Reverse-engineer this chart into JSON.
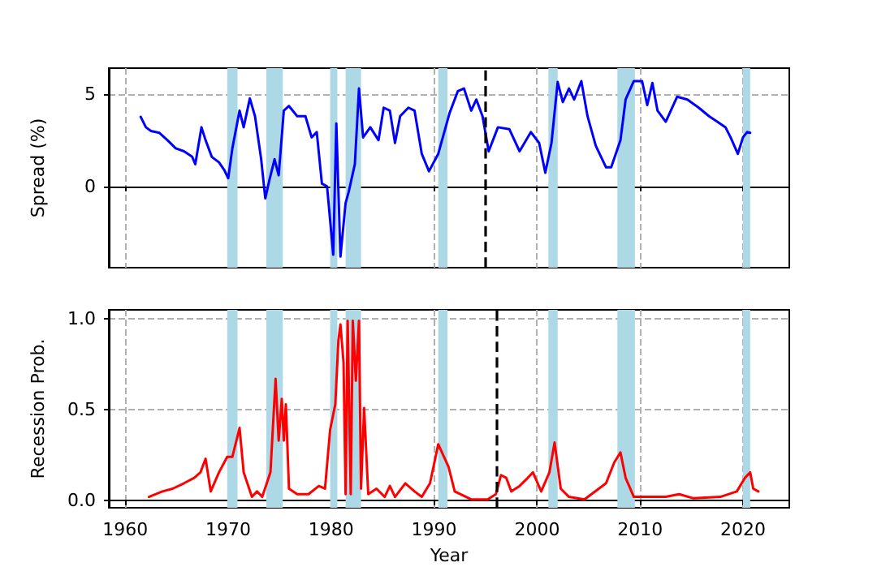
{
  "chart_data": [
    {
      "type": "line",
      "ylabel": "Spread (%)",
      "xlim": [
        1958.4,
        2024.5
      ],
      "xticks": [
        1960,
        1970,
        1980,
        1990,
        2000,
        2010,
        2020
      ],
      "ylim": [
        -4.4,
        6.4
      ],
      "yticks": [
        0,
        5
      ],
      "tick_labels": "y",
      "grid": true,
      "marker": "none",
      "line_style": "solid",
      "x": [
        1961.5,
        1962.0,
        1962.5,
        1963.3,
        1964.1,
        1964.9,
        1965.7,
        1966.5,
        1966.8,
        1967.4,
        1967.8,
        1968.4,
        1969.1,
        1969.6,
        1970.0,
        1970.4,
        1971.1,
        1971.5,
        1972.1,
        1972.6,
        1973.2,
        1973.6,
        1974.0,
        1974.5,
        1974.9,
        1975.4,
        1975.9,
        1976.7,
        1977.5,
        1978.1,
        1978.6,
        1979.1,
        1979.6,
        1980.2,
        1980.5,
        1980.9,
        1981.4,
        1981.7,
        1982.3,
        1982.7,
        1983.1,
        1983.8,
        1984.6,
        1985.1,
        1985.7,
        1986.2,
        1986.7,
        1987.5,
        1988.1,
        1988.8,
        1989.5,
        1990.4,
        1991.5,
        1992.3,
        1992.9,
        1993.6,
        1994.1,
        1994.7,
        1995.3,
        1996.2,
        1997.3,
        1998.3,
        1999.4,
        2000.2,
        2000.8,
        2001.4,
        2002.0,
        2002.5,
        2003.1,
        2003.6,
        2004.3,
        2004.9,
        2005.7,
        2006.7,
        2007.2,
        2008.1,
        2008.6,
        2009.4,
        2010.2,
        2010.7,
        2011.2,
        2011.7,
        2012.5,
        2013.6,
        2014.6,
        2015.7,
        2016.7,
        2017.5,
        2018.3,
        2018.8,
        2019.5,
        2020.0,
        2020.4,
        2020.7
      ],
      "series": [
        {
          "color": "#0000ff",
          "values": [
            3.76,
            3.2,
            3.0,
            2.9,
            2.5,
            2.06,
            1.9,
            1.6,
            1.2,
            3.2,
            2.5,
            1.6,
            1.3,
            0.9,
            0.44,
            2.06,
            4.1,
            3.2,
            4.76,
            3.8,
            1.47,
            -0.65,
            0.35,
            1.47,
            0.6,
            4.1,
            4.35,
            3.8,
            3.8,
            2.65,
            2.94,
            0.15,
            0,
            -3.7,
            3.4,
            -3.8,
            -0.9,
            -0.3,
            1.2,
            5.3,
            2.65,
            3.2,
            2.5,
            4.26,
            4.1,
            2.35,
            3.8,
            4.26,
            4.1,
            1.76,
            0.82,
            1.76,
            3.97,
            5.15,
            5.3,
            4.1,
            4.7,
            3.8,
            1.9,
            3.2,
            3.1,
            1.9,
            2.94,
            2.35,
            0.74,
            2.35,
            5.65,
            4.56,
            5.3,
            4.7,
            5.7,
            3.8,
            2.2,
            1.03,
            1.03,
            2.5,
            4.7,
            5.7,
            5.7,
            4.4,
            5.6,
            4.1,
            3.5,
            4.85,
            4.7,
            4.26,
            3.8,
            3.5,
            3.2,
            2.65,
            1.76,
            2.65,
            2.94,
            2.9
          ]
        }
      ],
      "bands": [
        {
          "axis": "x",
          "from": 1969.9,
          "to": 1970.9,
          "color": "#add8e6"
        },
        {
          "axis": "x",
          "from": 1973.7,
          "to": 1975.3,
          "color": "#add8e6"
        },
        {
          "axis": "x",
          "from": 1979.9,
          "to": 1980.6,
          "color": "#add8e6"
        },
        {
          "axis": "x",
          "from": 1981.4,
          "to": 1982.9,
          "color": "#add8e6"
        },
        {
          "axis": "x",
          "from": 1990.4,
          "to": 1991.3,
          "color": "#add8e6"
        },
        {
          "axis": "x",
          "from": 2001.1,
          "to": 2002.0,
          "color": "#add8e6"
        },
        {
          "axis": "x",
          "from": 2007.8,
          "to": 2009.5,
          "color": "#add8e6"
        },
        {
          "axis": "x",
          "from": 2020.0,
          "to": 2020.7,
          "color": "#add8e6"
        }
      ],
      "ref_lines": [
        {
          "axis": "x",
          "value": 1995.0,
          "color": "#000000",
          "line_style": "dashed"
        }
      ]
    },
    {
      "type": "line",
      "xlabel": "Year",
      "ylabel": "Recession Prob.",
      "xlim": [
        1958.4,
        2024.5
      ],
      "xticks": [
        1960,
        1970,
        1980,
        1990,
        2000,
        2010,
        2020
      ],
      "ylim": [
        -0.04,
        1.05
      ],
      "yticks": [
        {
          "value": 0,
          "label": "0.0"
        },
        {
          "value": 0.5,
          "label": "0.5"
        },
        {
          "value": 1,
          "label": "1.0"
        }
      ],
      "grid": true,
      "marker": "none",
      "line_style": "solid",
      "x": [
        1962.3,
        1963.6,
        1964.6,
        1965.7,
        1966.7,
        1967.3,
        1967.8,
        1968.3,
        1969.1,
        1969.9,
        1970.4,
        1971.1,
        1971.5,
        1972.3,
        1972.8,
        1973.3,
        1974.1,
        1974.6,
        1974.9,
        1975.2,
        1975.4,
        1975.6,
        1975.9,
        1976.7,
        1977.8,
        1978.8,
        1979.4,
        1979.9,
        1980.4,
        1980.7,
        1980.9,
        1981.2,
        1981.4,
        1981.6,
        1981.9,
        1982.1,
        1982.4,
        1982.7,
        1982.9,
        1983.2,
        1983.6,
        1984.4,
        1985.2,
        1985.7,
        1986.2,
        1987.2,
        1988.1,
        1988.8,
        1989.6,
        1990.4,
        1991.4,
        1992.0,
        1993.6,
        1995.2,
        1996.0,
        1996.5,
        1997.0,
        1997.5,
        1998.3,
        1999.1,
        1999.6,
        2000.4,
        2001.2,
        2001.7,
        2002.3,
        2003.1,
        2004.6,
        2006.7,
        2007.5,
        2008.1,
        2008.6,
        2009.4,
        2012.5,
        2013.8,
        2015.2,
        2017.8,
        2019.4,
        2020.2,
        2020.7,
        2021.0,
        2021.5
      ],
      "series": [
        {
          "color": "#ff0000",
          "values": [
            0.02,
            0.05,
            0.065,
            0.095,
            0.125,
            0.155,
            0.23,
            0.05,
            0.155,
            0.24,
            0.24,
            0.4,
            0.155,
            0.02,
            0.05,
            0.02,
            0.155,
            0.67,
            0.33,
            0.56,
            0.33,
            0.53,
            0.065,
            0.035,
            0.035,
            0.08,
            0.065,
            0.39,
            0.53,
            0.88,
            0.97,
            0.76,
            0.035,
            0.99,
            0.035,
            0.99,
            0.66,
            0.99,
            0.065,
            0.51,
            0.035,
            0.065,
            0.02,
            0.08,
            0.02,
            0.095,
            0.05,
            0.02,
            0.095,
            0.31,
            0.185,
            0.05,
            0.006,
            0.006,
            0.035,
            0.14,
            0.125,
            0.05,
            0.08,
            0.125,
            0.155,
            0.05,
            0.155,
            0.32,
            0.065,
            0.02,
            0.006,
            0.095,
            0.21,
            0.265,
            0.125,
            0.02,
            0.02,
            0.035,
            0.012,
            0.02,
            0.05,
            0.125,
            0.155,
            0.065,
            0.05
          ]
        }
      ],
      "bands": [
        {
          "axis": "x",
          "from": 1969.9,
          "to": 1970.9,
          "color": "#add8e6"
        },
        {
          "axis": "x",
          "from": 1973.7,
          "to": 1975.3,
          "color": "#add8e6"
        },
        {
          "axis": "x",
          "from": 1979.9,
          "to": 1980.6,
          "color": "#add8e6"
        },
        {
          "axis": "x",
          "from": 1981.4,
          "to": 1982.9,
          "color": "#add8e6"
        },
        {
          "axis": "x",
          "from": 1990.4,
          "to": 1991.3,
          "color": "#add8e6"
        },
        {
          "axis": "x",
          "from": 2001.1,
          "to": 2002.0,
          "color": "#add8e6"
        },
        {
          "axis": "x",
          "from": 2007.8,
          "to": 2009.5,
          "color": "#add8e6"
        },
        {
          "axis": "x",
          "from": 2020.0,
          "to": 2020.7,
          "color": "#add8e6"
        }
      ],
      "ref_lines": [
        {
          "axis": "x",
          "value": 1996.0,
          "color": "#000000",
          "line_style": "dashed"
        }
      ]
    }
  ]
}
